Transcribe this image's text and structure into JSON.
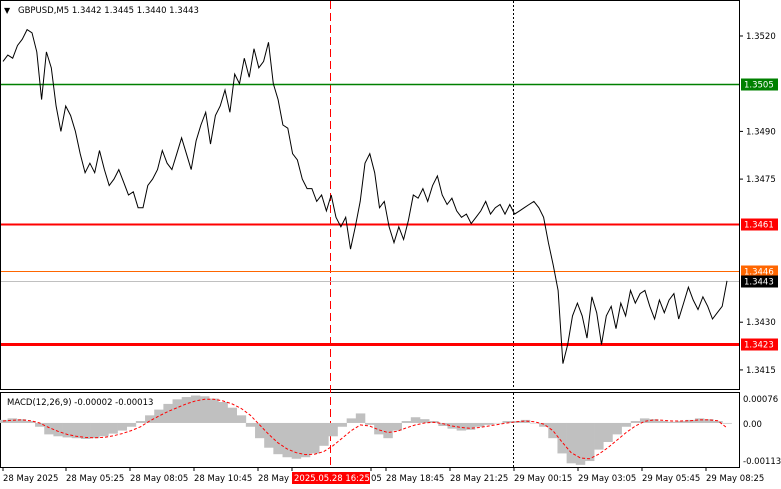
{
  "header": {
    "symbol_line": "GBPUSD,M5  1.3442 1.3445 1.3440 1.3443",
    "triangle_icon": "dropdown-triangle-icon"
  },
  "macd": {
    "label": "MACD(12,26,9) -0.00002 -0.00013",
    "y_ticks": [
      "0.00076",
      "0.00",
      "-0.00113"
    ]
  },
  "colors": {
    "green_level": "#008000",
    "red_level": "#ff0000",
    "orange_level": "#ff6600",
    "grey_level": "#c0c0c0",
    "price_line": "#000000",
    "histogram": "#c0c0c0",
    "signal": "#ff0000",
    "grid": "#000000",
    "crosshair": "#ff0000"
  },
  "chart_data": {
    "type": "line",
    "title": "GBPUSD,M5",
    "ylim": [
      1.3409,
      1.3531
    ],
    "y_ticks": [
      "1.3520",
      "1.3505",
      "1.3490",
      "1.3475",
      "1.3460",
      "1.3446",
      "1.3443",
      "1.3430",
      "1.3423",
      "1.3415"
    ],
    "plain_ticks": [
      1.352,
      1.349,
      1.3475,
      1.343,
      1.3415
    ],
    "x_ticks": [
      "28 May 2025",
      "28 May 05:25",
      "28 May 08:05",
      "28 May 10:45",
      "28 May",
      "2025.05.28 16:25",
      "05",
      "28 May 18:45",
      "28 May 21:25",
      "29 May 00:15",
      "29 May 03:05",
      "29 May 05:45",
      "29 May 08:25"
    ],
    "levels": [
      {
        "label": "1.3505",
        "value": 1.3505,
        "color": "#008000",
        "width": 1.5
      },
      {
        "label": "1.3461",
        "value": 1.3461,
        "color": "#ff0000",
        "width": 2
      },
      {
        "label": "1.3446",
        "value": 1.3446,
        "color": "#ff6600",
        "width": 1
      },
      {
        "label": "1.3443",
        "value": 1.3443,
        "color": "#c0c0c0",
        "width": 1
      },
      {
        "label": "1.3423",
        "value": 1.3423,
        "color": "#ff0000",
        "width": 3
      }
    ],
    "series": [
      {
        "values": [
          1.3512,
          1.3514,
          1.3513,
          1.3517,
          1.3519,
          1.3522,
          1.3521,
          1.3515,
          1.35,
          1.3515,
          1.351,
          1.3498,
          1.349,
          1.3498,
          1.3495,
          1.349,
          1.3483,
          1.3477,
          1.348,
          1.3477,
          1.3484,
          1.3478,
          1.3473,
          1.3475,
          1.3478,
          1.3474,
          1.347,
          1.3471,
          1.3466,
          1.3466,
          1.3473,
          1.3475,
          1.3478,
          1.3484,
          1.348,
          1.3478,
          1.3483,
          1.3488,
          1.3483,
          1.3478,
          1.3487,
          1.3492,
          1.3496,
          1.3486,
          1.3495,
          1.3498,
          1.3503,
          1.3496,
          1.3508,
          1.3505,
          1.3513,
          1.3507,
          1.3516,
          1.351,
          1.3512,
          1.3518,
          1.3505,
          1.35,
          1.3492,
          1.3491,
          1.3483,
          1.3481,
          1.3475,
          1.3472,
          1.3472,
          1.3468,
          1.347,
          1.3465,
          1.347,
          1.3463,
          1.346,
          1.3463,
          1.3453,
          1.346,
          1.3468,
          1.348,
          1.3483,
          1.3477,
          1.3466,
          1.3468,
          1.346,
          1.3455,
          1.346,
          1.3456,
          1.3462,
          1.347,
          1.3469,
          1.3472,
          1.3468,
          1.3473,
          1.3476,
          1.347,
          1.3467,
          1.3469,
          1.3465,
          1.3463,
          1.3464,
          1.3461,
          1.3463,
          1.3465,
          1.3468,
          1.3464,
          1.3466,
          1.3467,
          1.3464,
          1.3467,
          1.3464,
          1.3465,
          1.3466,
          1.3467,
          1.3468,
          1.3466,
          1.3463,
          1.3455,
          1.3448,
          1.344,
          1.3417,
          1.3423,
          1.3432,
          1.3436,
          1.3432,
          1.3425,
          1.3438,
          1.3433,
          1.3423,
          1.3432,
          1.3435,
          1.3428,
          1.3436,
          1.3432,
          1.344,
          1.3436,
          1.3439,
          1.344,
          1.3435,
          1.3431,
          1.3437,
          1.3433,
          1.3437,
          1.3439,
          1.3431,
          1.3436,
          1.3441,
          1.3437,
          1.3434,
          1.3438,
          1.3435,
          1.3431,
          1.3433,
          1.3435,
          1.3443
        ]
      }
    ],
    "macd_hist": [
      8e-05,
      0.00012,
      0.0001,
      5e-05,
      -0.0001,
      -0.0003,
      -0.00035,
      -0.00038,
      -0.0004,
      -0.00042,
      -0.0004,
      -0.00035,
      -0.00028,
      -0.0002,
      -0.0001,
      5e-05,
      0.0002,
      0.00035,
      0.0005,
      0.00062,
      0.00068,
      0.00072,
      0.0007,
      0.00064,
      0.00055,
      0.0004,
      0.0002,
      -0.0001,
      -0.0004,
      -0.00065,
      -0.00082,
      -0.0009,
      -0.00094,
      -0.0009,
      -0.0008,
      -0.0006,
      -0.00035,
      -0.0001,
      0.00012,
      0.00025,
      -5e-05,
      -0.0003,
      -0.0004,
      -0.0002,
      5e-05,
      0.00015,
      0.0001,
      5e-05,
      -8e-05,
      -0.00015,
      -0.0002,
      -0.00018,
      -0.0001,
      -5e-05,
      0.0,
      5e-05,
      5e-05,
      8e-05,
      0.0,
      -0.0001,
      -0.0004,
      -0.0008,
      -0.00106,
      -0.0011,
      -0.001,
      -0.0007,
      -0.0005,
      -0.0003,
      -0.0001,
      5e-05,
      0.00012,
      0.0001,
      5e-05,
      3e-05,
      5e-05,
      8e-05,
      0.00012,
      0.0001,
      5e-05,
      -2e-05
    ],
    "macd_signal": [
      5e-05,
      7e-05,
      8e-05,
      6e-05,
      0.0,
      -0.00012,
      -0.00022,
      -0.0003,
      -0.00035,
      -0.00038,
      -0.00039,
      -0.00038,
      -0.00034,
      -0.00028,
      -0.0002,
      -0.0001,
      5e-05,
      0.00018,
      0.0003,
      0.0004,
      0.0005,
      0.00058,
      0.00062,
      0.00062,
      0.00058,
      0.0005,
      0.00038,
      0.0002,
      -5e-05,
      -0.0003,
      -0.00052,
      -0.00068,
      -0.00078,
      -0.00083,
      -0.00082,
      -0.00075,
      -0.0006,
      -0.0004,
      -0.0002,
      -5e-05,
      -8e-05,
      -0.00018,
      -0.00025,
      -0.00022,
      -0.00013,
      -5e-05,
      0.0,
      2e-05,
      -2e-05,
      -8e-05,
      -0.00012,
      -0.00014,
      -0.00012,
      -8e-05,
      -4e-05,
      0.0,
      3e-05,
      5e-05,
      3e-05,
      -3e-05,
      -0.0002,
      -0.0005,
      -0.00078,
      -0.00092,
      -0.00094,
      -0.00082,
      -0.00065,
      -0.00045,
      -0.00025,
      -8e-05,
      4e-05,
      8e-05,
      7e-05,
      5e-05,
      5e-05,
      6e-05,
      8e-05,
      8e-05,
      6e-05,
      -0.00013
    ],
    "macd_ylim": [
      -0.00113,
      0.00076
    ]
  }
}
